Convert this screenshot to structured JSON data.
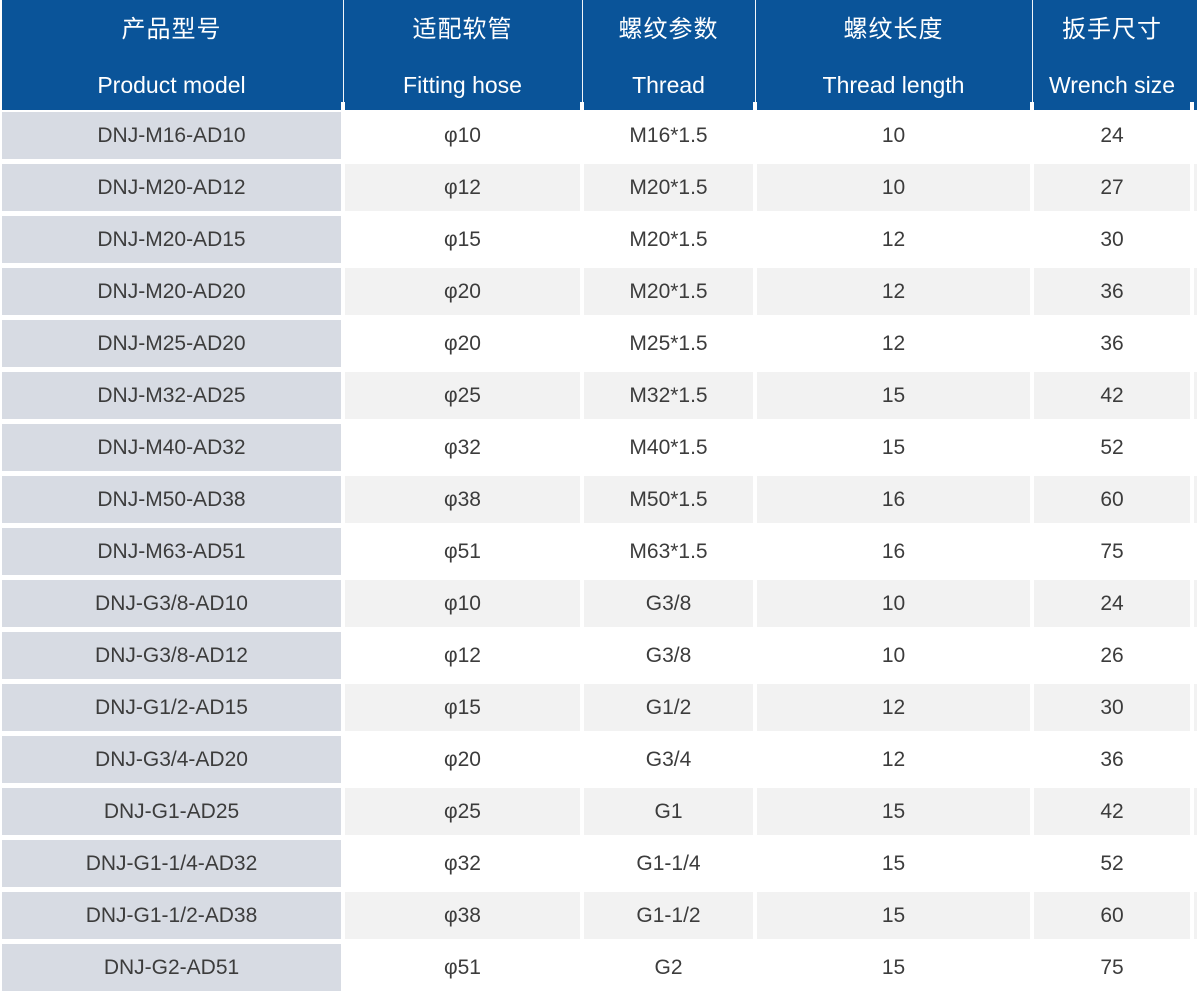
{
  "table": {
    "columns": [
      {
        "zh": "产品型号",
        "en": "Product model"
      },
      {
        "zh": "适配软管",
        "en": "Fitting hose"
      },
      {
        "zh": "螺纹参数",
        "en": "Thread"
      },
      {
        "zh": "螺纹长度",
        "en": "Thread length"
      },
      {
        "zh": "扳手尺寸",
        "en": "Wrench size"
      }
    ],
    "rows": [
      [
        "DNJ-M16-AD10",
        "φ10",
        "M16*1.5",
        "10",
        "24"
      ],
      [
        "DNJ-M20-AD12",
        "φ12",
        "M20*1.5",
        "10",
        "27"
      ],
      [
        "DNJ-M20-AD15",
        "φ15",
        "M20*1.5",
        "12",
        "30"
      ],
      [
        "DNJ-M20-AD20",
        "φ20",
        "M20*1.5",
        "12",
        "36"
      ],
      [
        "DNJ-M25-AD20",
        "φ20",
        "M25*1.5",
        "12",
        "36"
      ],
      [
        "DNJ-M32-AD25",
        "φ25",
        "M32*1.5",
        "15",
        "42"
      ],
      [
        "DNJ-M40-AD32",
        "φ32",
        "M40*1.5",
        "15",
        "52"
      ],
      [
        "DNJ-M50-AD38",
        "φ38",
        "M50*1.5",
        "16",
        "60"
      ],
      [
        "DNJ-M63-AD51",
        "φ51",
        "M63*1.5",
        "16",
        "75"
      ],
      [
        "DNJ-G3/8-AD10",
        "φ10",
        "G3/8",
        "10",
        "24"
      ],
      [
        "DNJ-G3/8-AD12",
        "φ12",
        "G3/8",
        "10",
        "26"
      ],
      [
        "DNJ-G1/2-AD15",
        "φ15",
        "G1/2",
        "12",
        "30"
      ],
      [
        "DNJ-G3/4-AD20",
        "φ20",
        "G3/4",
        "12",
        "36"
      ],
      [
        "DNJ-G1-AD25",
        "φ25",
        "G1",
        "15",
        "42"
      ],
      [
        "DNJ-G1-1/4-AD32",
        "φ32",
        "G1-1/4",
        "15",
        "52"
      ],
      [
        "DNJ-G1-1/2-AD38",
        "φ38",
        "G1-1/2",
        "15",
        "60"
      ],
      [
        "DNJ-G2-AD51",
        "φ51",
        "G2",
        "15",
        "75"
      ]
    ]
  },
  "colors": {
    "header_bg": "#0A5499",
    "header_text": "#FFFFFF",
    "model_cell_bg": "#D7DBE3",
    "row_bg": "#FFFFFF",
    "alt_row_bg": "#F2F2F2",
    "cell_text": "#3C3C3C"
  },
  "chart_data": {
    "type": "table",
    "title": "",
    "columns": [
      "产品型号 Product model",
      "适配软管 Fitting hose",
      "螺纹参数 Thread",
      "螺纹长度 Thread length",
      "扳手尺寸 Wrench size"
    ],
    "rows": [
      [
        "DNJ-M16-AD10",
        "φ10",
        "M16*1.5",
        "10",
        "24"
      ],
      [
        "DNJ-M20-AD12",
        "φ12",
        "M20*1.5",
        "10",
        "27"
      ],
      [
        "DNJ-M20-AD15",
        "φ15",
        "M20*1.5",
        "12",
        "30"
      ],
      [
        "DNJ-M20-AD20",
        "φ20",
        "M20*1.5",
        "12",
        "36"
      ],
      [
        "DNJ-M25-AD20",
        "φ20",
        "M25*1.5",
        "12",
        "36"
      ],
      [
        "DNJ-M32-AD25",
        "φ25",
        "M32*1.5",
        "15",
        "42"
      ],
      [
        "DNJ-M40-AD32",
        "φ32",
        "M40*1.5",
        "15",
        "52"
      ],
      [
        "DNJ-M50-AD38",
        "φ38",
        "M50*1.5",
        "16",
        "60"
      ],
      [
        "DNJ-M63-AD51",
        "φ51",
        "M63*1.5",
        "16",
        "75"
      ],
      [
        "DNJ-G3/8-AD10",
        "φ10",
        "G3/8",
        "10",
        "24"
      ],
      [
        "DNJ-G3/8-AD12",
        "φ12",
        "G3/8",
        "10",
        "26"
      ],
      [
        "DNJ-G1/2-AD15",
        "φ15",
        "G1/2",
        "12",
        "30"
      ],
      [
        "DNJ-G3/4-AD20",
        "φ20",
        "G3/4",
        "12",
        "36"
      ],
      [
        "DNJ-G1-AD25",
        "φ25",
        "G1",
        "15",
        "42"
      ],
      [
        "DNJ-G1-1/4-AD32",
        "φ32",
        "G1-1/4",
        "15",
        "52"
      ],
      [
        "DNJ-G1-1/2-AD38",
        "φ38",
        "G1-1/2",
        "15",
        "60"
      ],
      [
        "DNJ-G2-AD51",
        "φ51",
        "G2",
        "15",
        "75"
      ]
    ]
  }
}
